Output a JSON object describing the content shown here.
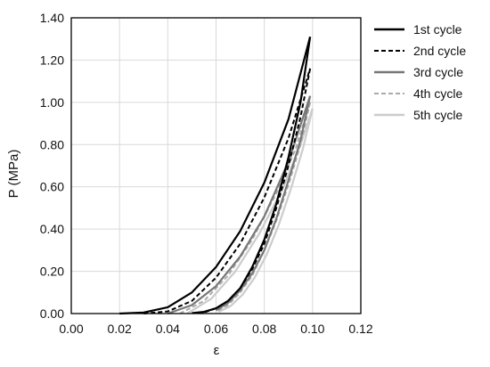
{
  "chart_data": {
    "type": "line",
    "title": "",
    "xlabel": "ε",
    "ylabel": "P (MPa)",
    "xlim": [
      0.0,
      0.12
    ],
    "ylim": [
      0.0,
      1.4
    ],
    "x_ticks": [
      "0.00",
      "0.02",
      "0.04",
      "0.06",
      "0.08",
      "0.10",
      "0.12"
    ],
    "y_ticks": [
      "0.00",
      "0.20",
      "0.40",
      "0.60",
      "0.80",
      "1.00",
      "1.20",
      "1.40"
    ],
    "grid": true,
    "legend_position": "outside-right",
    "series": [
      {
        "name": "1st cycle",
        "color": "#000000",
        "dash": "solid",
        "loading": [
          [
            0.02,
            0
          ],
          [
            0.03,
            0.005
          ],
          [
            0.04,
            0.03
          ],
          [
            0.05,
            0.1
          ],
          [
            0.06,
            0.22
          ],
          [
            0.07,
            0.39
          ],
          [
            0.08,
            0.62
          ],
          [
            0.09,
            0.92
          ],
          [
            0.099,
            1.31
          ]
        ],
        "unloading": [
          [
            0.099,
            1.31
          ],
          [
            0.095,
            1.0
          ],
          [
            0.09,
            0.74
          ],
          [
            0.085,
            0.52
          ],
          [
            0.08,
            0.35
          ],
          [
            0.075,
            0.22
          ],
          [
            0.07,
            0.12
          ],
          [
            0.065,
            0.06
          ],
          [
            0.06,
            0.025
          ],
          [
            0.055,
            0.008
          ],
          [
            0.05,
            0.002
          ]
        ]
      },
      {
        "name": "2nd cycle",
        "color": "#000000",
        "dash": "dashed",
        "loading": [
          [
            0.03,
            0
          ],
          [
            0.04,
            0.01
          ],
          [
            0.05,
            0.06
          ],
          [
            0.06,
            0.17
          ],
          [
            0.07,
            0.33
          ],
          [
            0.08,
            0.55
          ],
          [
            0.09,
            0.83
          ],
          [
            0.099,
            1.16
          ]
        ],
        "unloading": [
          [
            0.099,
            1.16
          ],
          [
            0.095,
            0.93
          ],
          [
            0.09,
            0.7
          ],
          [
            0.085,
            0.5
          ],
          [
            0.08,
            0.33
          ],
          [
            0.075,
            0.21
          ],
          [
            0.07,
            0.12
          ],
          [
            0.065,
            0.06
          ],
          [
            0.06,
            0.025
          ],
          [
            0.055,
            0.005
          ]
        ]
      },
      {
        "name": "3rd cycle",
        "color": "#777777",
        "dash": "solid",
        "loading": [
          [
            0.04,
            0
          ],
          [
            0.05,
            0.04
          ],
          [
            0.06,
            0.13
          ],
          [
            0.07,
            0.27
          ],
          [
            0.08,
            0.46
          ],
          [
            0.09,
            0.72
          ],
          [
            0.099,
            1.03
          ]
        ],
        "unloading": [
          [
            0.099,
            1.03
          ],
          [
            0.095,
            0.82
          ],
          [
            0.09,
            0.63
          ],
          [
            0.085,
            0.45
          ],
          [
            0.08,
            0.3
          ],
          [
            0.075,
            0.19
          ],
          [
            0.07,
            0.11
          ],
          [
            0.065,
            0.05
          ],
          [
            0.06,
            0.015
          ]
        ]
      },
      {
        "name": "4th cycle",
        "color": "#aaaaaa",
        "dash": "dashed",
        "loading": [
          [
            0.045,
            0
          ],
          [
            0.055,
            0.06
          ],
          [
            0.065,
            0.18
          ],
          [
            0.075,
            0.35
          ],
          [
            0.085,
            0.57
          ],
          [
            0.093,
            0.78
          ],
          [
            0.099,
            1.0
          ]
        ],
        "unloading": [
          [
            0.099,
            1.0
          ],
          [
            0.095,
            0.8
          ],
          [
            0.09,
            0.61
          ],
          [
            0.085,
            0.44
          ],
          [
            0.08,
            0.3
          ],
          [
            0.075,
            0.18
          ],
          [
            0.07,
            0.1
          ],
          [
            0.065,
            0.04
          ],
          [
            0.06,
            0.01
          ]
        ]
      },
      {
        "name": "5th cycle",
        "color": "#cccccc",
        "dash": "solid",
        "loading": [
          [
            0.048,
            0
          ],
          [
            0.058,
            0.07
          ],
          [
            0.068,
            0.2
          ],
          [
            0.078,
            0.38
          ],
          [
            0.088,
            0.6
          ],
          [
            0.095,
            0.8
          ],
          [
            0.1,
            0.97
          ]
        ],
        "unloading": [
          [
            0.1,
            0.97
          ],
          [
            0.096,
            0.78
          ],
          [
            0.091,
            0.59
          ],
          [
            0.086,
            0.42
          ],
          [
            0.081,
            0.28
          ],
          [
            0.076,
            0.17
          ],
          [
            0.071,
            0.09
          ],
          [
            0.066,
            0.035
          ],
          [
            0.061,
            0.008
          ]
        ]
      }
    ]
  }
}
